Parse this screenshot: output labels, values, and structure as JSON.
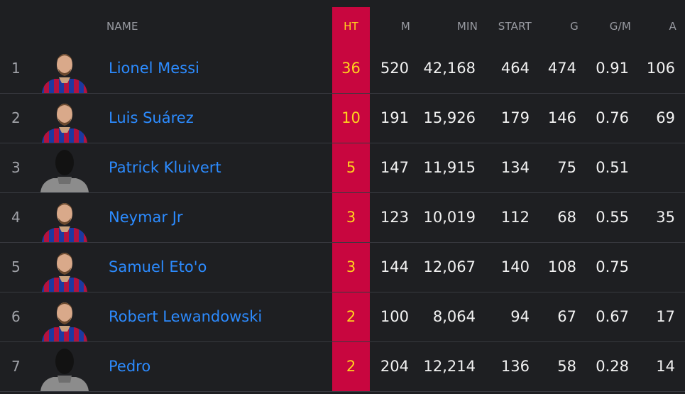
{
  "colors": {
    "background": "#1e1f22",
    "highlight_column": "#c8063f",
    "link": "#2c8bff",
    "ht_text": "#ffd21e"
  },
  "headers": {
    "name": "NAME",
    "ht": "HT",
    "m": "M",
    "min": "MIN",
    "start": "START",
    "g": "G",
    "gpm": "G/M",
    "a": "A"
  },
  "rows": [
    {
      "rank": "1",
      "name": "Lionel Messi",
      "avatar": "barca-kit-avatar-icon",
      "ht": "36",
      "m": "520",
      "min": "42,168",
      "start": "464",
      "g": "474",
      "gpm": "0.91",
      "a": "106"
    },
    {
      "rank": "2",
      "name": "Luis Suárez",
      "avatar": "barca-kit-avatar-icon",
      "ht": "10",
      "m": "191",
      "min": "15,926",
      "start": "179",
      "g": "146",
      "gpm": "0.76",
      "a": "69"
    },
    {
      "rank": "3",
      "name": "Patrick Kluivert",
      "avatar": "placeholder-silhouette-icon",
      "ht": "5",
      "m": "147",
      "min": "11,915",
      "start": "134",
      "g": "75",
      "gpm": "0.51",
      "a": ""
    },
    {
      "rank": "4",
      "name": "Neymar Jr",
      "avatar": "barca-kit-avatar-icon",
      "ht": "3",
      "m": "123",
      "min": "10,019",
      "start": "112",
      "g": "68",
      "gpm": "0.55",
      "a": "35"
    },
    {
      "rank": "5",
      "name": "Samuel Eto'o",
      "avatar": "barca-kit-avatar-icon",
      "ht": "3",
      "m": "144",
      "min": "12,067",
      "start": "140",
      "g": "108",
      "gpm": "0.75",
      "a": ""
    },
    {
      "rank": "6",
      "name": "Robert Lewandowski",
      "avatar": "barca-kit-avatar-icon",
      "ht": "2",
      "m": "100",
      "min": "8,064",
      "start": "94",
      "g": "67",
      "gpm": "0.67",
      "a": "17"
    },
    {
      "rank": "7",
      "name": "Pedro",
      "avatar": "placeholder-silhouette-icon",
      "ht": "2",
      "m": "204",
      "min": "12,214",
      "start": "136",
      "g": "58",
      "gpm": "0.28",
      "a": "14"
    }
  ]
}
